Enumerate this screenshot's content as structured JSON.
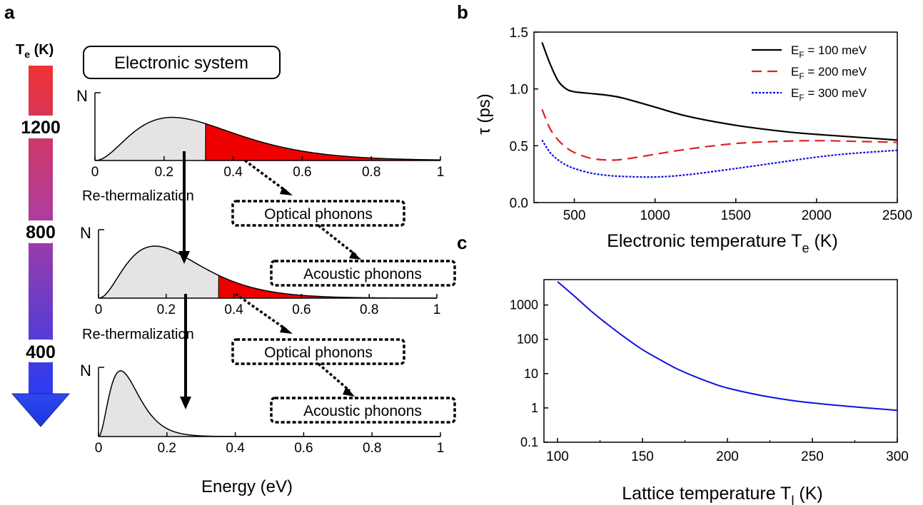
{
  "panel_labels": {
    "a": "a",
    "b": "b",
    "c": "c"
  },
  "colors": {
    "hot": "#e8202a",
    "mid": "#a040a0",
    "cold": "#2020e0",
    "gray_fill": "#e4e4e4",
    "red_fill": "#ee0000",
    "blue_line": "#1010e0"
  },
  "panel_a": {
    "temperature_axis": {
      "title_main": "T",
      "title_sub": "e",
      "title_unit": " (K)",
      "labels": [
        "1200",
        "800",
        "400"
      ]
    },
    "box_title": "Electronic system",
    "n_label": "N",
    "rethermalization": "Re-thermalization",
    "optical": "Optical phonons",
    "acoustic": "Acoustic phonons",
    "energy_label": "Energy (eV)",
    "ticks": [
      "0",
      "0.2",
      "0.4",
      "0.6",
      "0.8",
      "1"
    ]
  },
  "chart_data": [
    {
      "type": "line",
      "title": "",
      "xlabel_main": "Electronic temperature T",
      "xlabel_sub": "e",
      "xlabel_unit": " (K)",
      "ylabel": "τ (ps)",
      "xlim": [
        250,
        2500
      ],
      "ylim": [
        0.0,
        1.5
      ],
      "xticks": [
        "500",
        "1000",
        "1500",
        "2000",
        "2500"
      ],
      "yticks": [
        "0.0",
        "0.5",
        "1.0",
        "1.5"
      ],
      "legend_position": "top-right",
      "series": [
        {
          "name_main": "E",
          "name_sub": "F",
          "name_rest": " = 100 meV",
          "style": "solid",
          "color": "#000000",
          "x": [
            300,
            350,
            400,
            450,
            500,
            600,
            700,
            800,
            1000,
            1200,
            1500,
            1800,
            2000,
            2200,
            2500
          ],
          "y": [
            1.41,
            1.22,
            1.07,
            1.0,
            0.975,
            0.96,
            0.945,
            0.92,
            0.84,
            0.76,
            0.68,
            0.625,
            0.6,
            0.58,
            0.55
          ]
        },
        {
          "name_main": "E",
          "name_sub": "F",
          "name_rest": " = 200 meV",
          "style": "dashed",
          "color": "#e02020",
          "x": [
            300,
            350,
            400,
            450,
            500,
            600,
            700,
            800,
            1000,
            1200,
            1500,
            1800,
            2000,
            2200,
            2500
          ],
          "y": [
            0.82,
            0.65,
            0.55,
            0.485,
            0.44,
            0.39,
            0.375,
            0.38,
            0.425,
            0.47,
            0.52,
            0.54,
            0.545,
            0.54,
            0.53
          ]
        },
        {
          "name_main": "E",
          "name_sub": "F",
          "name_rest": " = 300 meV",
          "style": "dotted",
          "color": "#1010e0",
          "x": [
            300,
            350,
            400,
            450,
            500,
            600,
            700,
            800,
            1000,
            1200,
            1500,
            1800,
            2000,
            2200,
            2500
          ],
          "y": [
            0.55,
            0.44,
            0.375,
            0.33,
            0.3,
            0.26,
            0.24,
            0.23,
            0.225,
            0.245,
            0.3,
            0.36,
            0.4,
            0.43,
            0.46
          ]
        }
      ]
    },
    {
      "type": "line",
      "title": "",
      "xlabel_main": "Lattice temperature T",
      "xlabel_sub": "l",
      "xlabel_unit": " (K)",
      "ylabel": "",
      "xlim": [
        92,
        300
      ],
      "ylim": [
        0.1,
        5500
      ],
      "yscale": "log",
      "xticks": [
        "100",
        "150",
        "200",
        "250",
        "300"
      ],
      "yticks": [
        "0.1",
        "1",
        "10",
        "100",
        "1000"
      ],
      "series": [
        {
          "color": "#1010e0",
          "x": [
            100,
            110,
            120,
            130,
            140,
            150,
            160,
            170,
            180,
            190,
            200,
            220,
            240,
            260,
            280,
            300
          ],
          "y": [
            4800,
            1800,
            650,
            260,
            110,
            50,
            26,
            14,
            8.5,
            5.5,
            3.8,
            2.3,
            1.6,
            1.25,
            1.02,
            0.85
          ]
        }
      ]
    }
  ]
}
